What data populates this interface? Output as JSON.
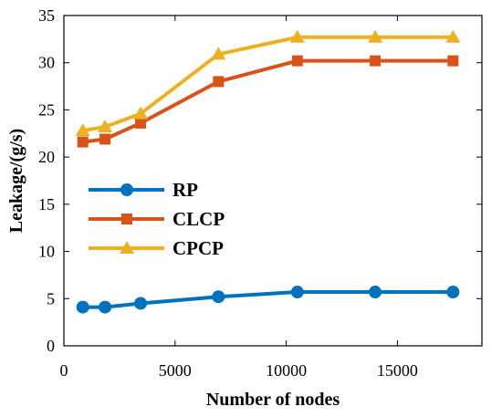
{
  "chart_data": {
    "type": "line",
    "xlabel": "Number of nodes",
    "ylabel": "Leakage/(g/s)",
    "xlim": [
      0,
      18800
    ],
    "ylim": [
      0,
      35
    ],
    "xticks": [
      0,
      5000,
      10000,
      15000
    ],
    "yticks": [
      0,
      5,
      10,
      15,
      20,
      25,
      30,
      35
    ],
    "x": [
      850,
      1850,
      3450,
      6950,
      10500,
      14000,
      17500
    ],
    "series": [
      {
        "name": "RP",
        "color": "#0072BD",
        "marker": "circle",
        "values": [
          4.1,
          4.1,
          4.5,
          5.2,
          5.7,
          5.7,
          5.7
        ]
      },
      {
        "name": "CLCP",
        "color": "#D95319",
        "marker": "square",
        "values": [
          21.6,
          21.9,
          23.6,
          28.0,
          30.2,
          30.2,
          30.2
        ]
      },
      {
        "name": "CPCP",
        "color": "#EDB120",
        "marker": "triangle",
        "values": [
          22.8,
          23.2,
          24.6,
          30.9,
          32.7,
          32.7,
          32.7
        ]
      }
    ],
    "legend_position": "center-left",
    "grid": false
  }
}
